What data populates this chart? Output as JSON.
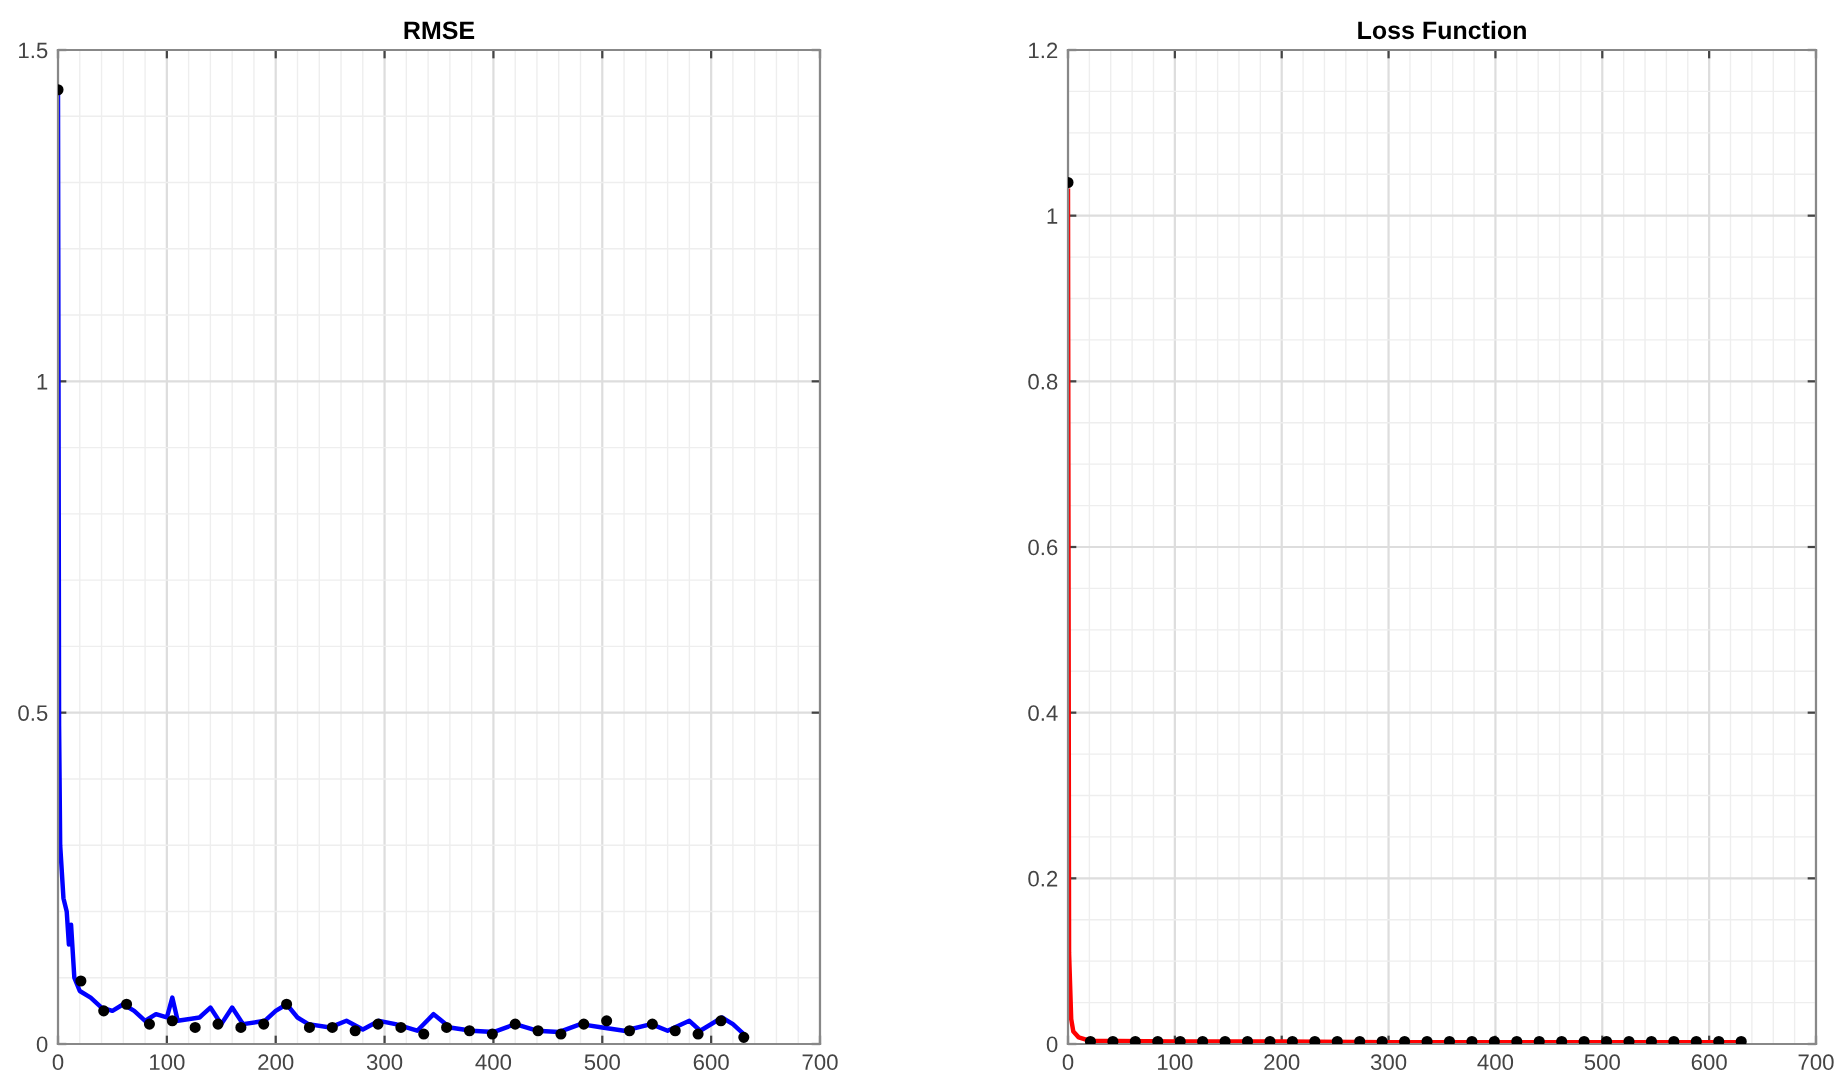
{
  "chart_data": [
    {
      "type": "line",
      "title": "RMSE",
      "xlim": [
        0,
        700
      ],
      "xticks": [
        0,
        100,
        200,
        300,
        400,
        500,
        600,
        700
      ],
      "ylim": [
        0,
        1.5
      ],
      "yticks": [
        0,
        0.5,
        1,
        1.5
      ],
      "grid": true,
      "series": [
        {
          "color": "#0000ff",
          "x": [
            0,
            1,
            2,
            5,
            8,
            10,
            12,
            15,
            20,
            30,
            40,
            50,
            60,
            70,
            80,
            90,
            100,
            105,
            110,
            130,
            140,
            150,
            160,
            170,
            190,
            200,
            210,
            220,
            230,
            250,
            265,
            280,
            295,
            310,
            330,
            345,
            360,
            380,
            400,
            420,
            440,
            460,
            480,
            500,
            520,
            545,
            560,
            580,
            590,
            610,
            620,
            630
          ],
          "values": [
            1.44,
            0.48,
            0.3,
            0.22,
            0.2,
            0.15,
            0.18,
            0.1,
            0.08,
            0.07,
            0.055,
            0.05,
            0.06,
            0.05,
            0.035,
            0.045,
            0.04,
            0.07,
            0.035,
            0.04,
            0.055,
            0.03,
            0.055,
            0.03,
            0.035,
            0.05,
            0.06,
            0.04,
            0.03,
            0.025,
            0.035,
            0.022,
            0.035,
            0.03,
            0.02,
            0.045,
            0.025,
            0.02,
            0.018,
            0.03,
            0.02,
            0.018,
            0.03,
            0.025,
            0.02,
            0.03,
            0.02,
            0.035,
            0.02,
            0.04,
            0.03,
            0.015
          ]
        },
        {
          "type": "scatter",
          "color": "#000000",
          "marker": "circle",
          "x": [
            0,
            21,
            42,
            63,
            84,
            105,
            126,
            147,
            168,
            189,
            210,
            231,
            252,
            273,
            294,
            315,
            336,
            357,
            378,
            399,
            420,
            441,
            462,
            483,
            504,
            525,
            546,
            567,
            588,
            609,
            630
          ],
          "values": [
            1.44,
            0.095,
            0.05,
            0.06,
            0.03,
            0.035,
            0.025,
            0.03,
            0.025,
            0.03,
            0.06,
            0.025,
            0.025,
            0.02,
            0.03,
            0.025,
            0.015,
            0.025,
            0.02,
            0.015,
            0.03,
            0.02,
            0.015,
            0.03,
            0.035,
            0.02,
            0.03,
            0.02,
            0.015,
            0.035,
            0.01
          ]
        }
      ]
    },
    {
      "type": "line",
      "title": "Loss Function",
      "xlim": [
        0,
        700
      ],
      "xticks": [
        0,
        100,
        200,
        300,
        400,
        500,
        600,
        700
      ],
      "ylim": [
        0,
        1.2
      ],
      "yticks": [
        0,
        0.2,
        0.4,
        0.6,
        0.8,
        1,
        1.2
      ],
      "grid": true,
      "series": [
        {
          "color": "#ff0000",
          "x": [
            0,
            1,
            3,
            5,
            10,
            20,
            100,
            200,
            300,
            400,
            500,
            600,
            630
          ],
          "values": [
            1.03,
            0.11,
            0.03,
            0.015,
            0.008,
            0.004,
            0.003,
            0.003,
            0.002,
            0.002,
            0.002,
            0.002,
            0.002
          ]
        },
        {
          "type": "scatter",
          "color": "#000000",
          "marker": "circle",
          "x": [
            0,
            21,
            42,
            63,
            84,
            105,
            126,
            147,
            168,
            189,
            210,
            231,
            252,
            273,
            294,
            315,
            336,
            357,
            378,
            399,
            420,
            441,
            462,
            483,
            504,
            525,
            546,
            567,
            588,
            609,
            630
          ],
          "values": [
            1.04,
            0.003,
            0.003,
            0.003,
            0.003,
            0.003,
            0.003,
            0.003,
            0.003,
            0.003,
            0.003,
            0.003,
            0.003,
            0.003,
            0.003,
            0.003,
            0.003,
            0.003,
            0.003,
            0.003,
            0.003,
            0.003,
            0.003,
            0.003,
            0.003,
            0.003,
            0.003,
            0.003,
            0.003,
            0.003,
            0.003
          ]
        }
      ]
    }
  ]
}
